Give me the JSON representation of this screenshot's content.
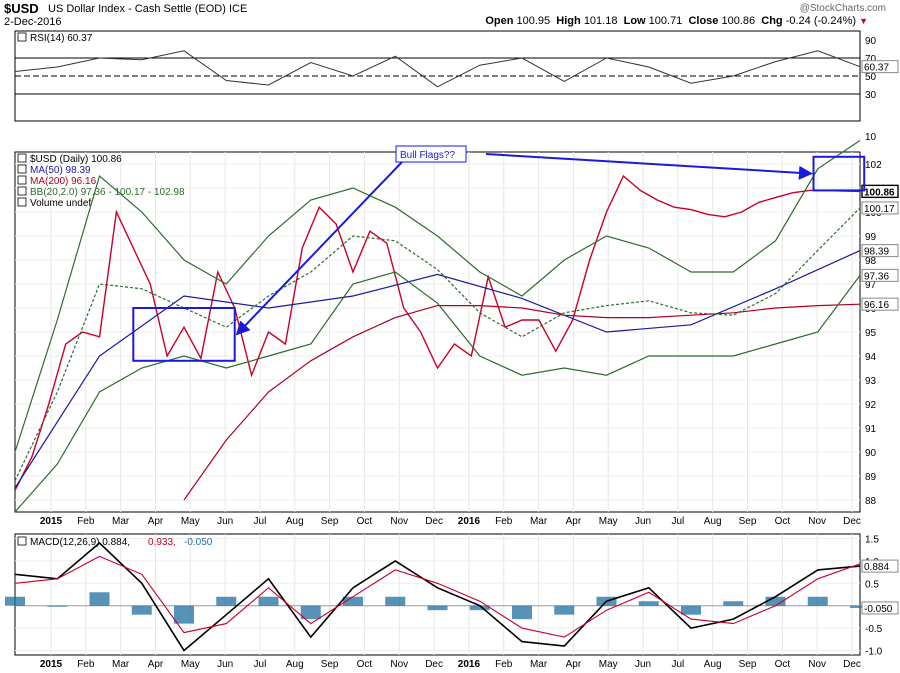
{
  "header": {
    "symbol": "$USD",
    "name": "US Dollar Index - Cash Settle (EOD) ICE",
    "date": "2-Dec-2016",
    "watermark": "@StockCharts.com",
    "ohlc": {
      "open_label": "Open",
      "open": "100.95",
      "high_label": "High",
      "high": "101.18",
      "low_label": "Low",
      "low": "100.71",
      "close_label": "Close",
      "close": "100.86",
      "chg_label": "Chg",
      "chg": "-0.24 (-0.24%)"
    }
  },
  "chart_data": [
    {
      "panel": "rsi",
      "type": "line",
      "legend": "RSI(14) 60.37",
      "ylim": [
        0,
        100
      ],
      "yticks": [
        10,
        30,
        50,
        70,
        90
      ],
      "reference_lines": [
        30,
        50,
        70
      ],
      "last_value": "60.37",
      "x": [
        0,
        5,
        10,
        15,
        20,
        25,
        30,
        35,
        40,
        45,
        50,
        55,
        60,
        65,
        70,
        75,
        80,
        85,
        90,
        95,
        100
      ],
      "values": [
        55,
        60,
        70,
        68,
        78,
        45,
        40,
        65,
        50,
        72,
        38,
        62,
        70,
        44,
        70,
        60,
        42,
        50,
        66,
        78,
        60.37
      ]
    },
    {
      "panel": "price",
      "type": "line",
      "legend": [
        {
          "text": "$USD (Daily) 100.86",
          "color": "#000000"
        },
        {
          "text": "MA(50) 98.39",
          "color": "#1a1aa0"
        },
        {
          "text": "MA(200) 96.16",
          "color": "#b00020"
        },
        {
          "text": "BB(20,2.0) 97.36 - 100.17 - 102.98",
          "color": "#2e6b2e"
        },
        {
          "text": "Volume undef",
          "color": "#000000"
        }
      ],
      "ylim": [
        87.5,
        102.5
      ],
      "yticks": [
        88,
        89,
        90,
        91,
        92,
        93,
        94,
        95,
        96,
        97,
        98,
        99,
        100,
        101,
        102
      ],
      "x_labels": [
        "2015",
        "Feb",
        "Mar",
        "Apr",
        "May",
        "Jun",
        "Jul",
        "Aug",
        "Sep",
        "Oct",
        "Nov",
        "Dec",
        "2016",
        "Feb",
        "Mar",
        "Apr",
        "May",
        "Jun",
        "Jul",
        "Aug",
        "Sep",
        "Oct",
        "Nov",
        "Dec"
      ],
      "price_tags": [
        {
          "text": "100.86",
          "value": 100.86,
          "dark": true
        },
        {
          "text": "100.17",
          "value": 100.17,
          "dark": false
        },
        {
          "text": "98.39",
          "value": 98.39,
          "dark": false
        },
        {
          "text": "97.36",
          "value": 97.36,
          "dark": false
        },
        {
          "text": "96.16",
          "value": 96.16,
          "dark": false
        }
      ],
      "series": [
        {
          "name": "$USD (Daily)",
          "color": "#c8002a",
          "x": [
            0,
            2,
            4,
            6,
            8,
            10,
            12,
            14,
            16,
            18,
            20,
            22,
            24,
            26,
            28,
            30,
            32,
            34,
            36,
            38,
            40,
            42,
            44,
            46,
            48,
            50,
            52,
            54,
            56,
            58,
            60,
            62,
            64,
            66,
            68,
            70,
            72,
            74,
            76,
            78,
            80,
            82,
            84,
            86,
            88,
            90,
            92,
            94,
            96,
            98,
            100
          ],
          "values": [
            88.4,
            89.8,
            92,
            94.5,
            95,
            94.8,
            100,
            98.5,
            97,
            94,
            95.2,
            93.9,
            97.5,
            96,
            93.2,
            95,
            94.5,
            98.5,
            100.2,
            99.5,
            97.5,
            99.2,
            98.7,
            96,
            95,
            93.5,
            94.5,
            94,
            97.3,
            95.2,
            95.5,
            95.5,
            94.2,
            95.5,
            98,
            100,
            101.5,
            100.9,
            100.5,
            100.2,
            100.1,
            99.9,
            99.8,
            100.0,
            100.4,
            100.6,
            100.8,
            100.9,
            100.9,
            100.87,
            100.86
          ]
        },
        {
          "name": "MA(50)",
          "color": "#1a1aa0",
          "x": [
            0,
            10,
            20,
            30,
            40,
            50,
            60,
            70,
            80,
            90,
            100
          ],
          "values": [
            88.5,
            94,
            96.5,
            96,
            96.5,
            97.4,
            96.4,
            95,
            95.3,
            96.8,
            98.39
          ]
        },
        {
          "name": "MA(200)",
          "color": "#b00020",
          "x": [
            20,
            25,
            30,
            35,
            40,
            45,
            50,
            55,
            60,
            65,
            70,
            75,
            80,
            85,
            90,
            95,
            100
          ],
          "values": [
            88,
            90.5,
            92.5,
            93.8,
            94.8,
            95.6,
            96.1,
            96.1,
            96,
            95.7,
            95.6,
            95.6,
            95.7,
            95.8,
            96,
            96.1,
            96.16
          ]
        },
        {
          "name": "BB upper",
          "color": "#2e6b2e",
          "x": [
            0,
            5,
            10,
            15,
            20,
            25,
            30,
            35,
            40,
            45,
            50,
            55,
            60,
            65,
            70,
            75,
            80,
            85,
            90,
            95,
            100
          ],
          "values": [
            90,
            95.5,
            101.5,
            100,
            98,
            97,
            99,
            100.5,
            101,
            100.2,
            99,
            97.5,
            96.5,
            98,
            99,
            98.5,
            97.5,
            97.5,
            98.8,
            101.8,
            102.98
          ]
        },
        {
          "name": "BB lower",
          "color": "#2e6b2e",
          "x": [
            0,
            5,
            10,
            15,
            20,
            25,
            30,
            35,
            40,
            45,
            50,
            55,
            60,
            65,
            70,
            75,
            80,
            85,
            90,
            95,
            100
          ],
          "values": [
            87.5,
            89.5,
            92.5,
            93.5,
            94,
            93.5,
            94,
            94.5,
            97,
            97.5,
            96.2,
            94,
            93.2,
            93.5,
            93.2,
            94,
            94,
            94,
            94.5,
            95,
            97.36
          ]
        },
        {
          "name": "BB middle",
          "color": "#2e6b2e",
          "dashed": true,
          "x": [
            0,
            5,
            10,
            15,
            20,
            25,
            30,
            35,
            40,
            45,
            50,
            55,
            60,
            65,
            70,
            75,
            80,
            85,
            90,
            95,
            100
          ],
          "values": [
            88.8,
            92.5,
            97,
            96.8,
            96,
            95.2,
            96.5,
            97.5,
            99,
            98.8,
            97.6,
            95.8,
            94.8,
            95.8,
            96.1,
            96.3,
            95.8,
            95.7,
            96.6,
            98.4,
            100.17
          ]
        }
      ],
      "annotations": {
        "callout_label": "Bull Flags??",
        "boxes": [
          {
            "x0": 14,
            "x1": 26,
            "y0": 93.8,
            "y1": 96
          },
          {
            "x0": 94.5,
            "x1": 100.5,
            "y0": 100.9,
            "y1": 102.3
          }
        ]
      }
    },
    {
      "panel": "macd",
      "type": "line",
      "legend": [
        {
          "text": "MACD(12,26,9) 0.884,",
          "color": "#000000"
        },
        {
          "text": " 0.933,",
          "color": "#c8002a"
        },
        {
          "text": " -0.050",
          "color": "#1f6fa0"
        }
      ],
      "ylim": [
        -1.1,
        1.6
      ],
      "yticks": [
        -1.0,
        -0.5,
        0.0,
        0.5,
        1.0,
        1.5
      ],
      "ytick_labels": [
        "-1.0",
        "-0.5",
        "0.0",
        "0.5",
        "1.0",
        "1.5"
      ],
      "x_labels": [
        "2015",
        "Feb",
        "Mar",
        "Apr",
        "May",
        "Jun",
        "Jul",
        "Aug",
        "Sep",
        "Oct",
        "Nov",
        "Dec",
        "2016",
        "Feb",
        "Mar",
        "Apr",
        "May",
        "Jun",
        "Jul",
        "Aug",
        "Sep",
        "Oct",
        "Nov",
        "Dec"
      ],
      "price_tags": [
        {
          "text": "0.884",
          "value": 0.884,
          "dark": false
        },
        {
          "text": "-0.050",
          "value": -0.05,
          "dark": false
        }
      ],
      "series": [
        {
          "name": "MACD",
          "color": "#000000",
          "x": [
            0,
            5,
            10,
            15,
            20,
            25,
            30,
            35,
            40,
            45,
            50,
            55,
            60,
            65,
            70,
            75,
            80,
            85,
            90,
            95,
            100
          ],
          "values": [
            0.7,
            0.6,
            1.4,
            0.5,
            -1.0,
            -0.2,
            0.6,
            -0.7,
            0.4,
            1.0,
            0.4,
            0.0,
            -0.8,
            -0.9,
            0.1,
            0.4,
            -0.5,
            -0.3,
            0.2,
            0.8,
            0.884
          ]
        },
        {
          "name": "Signal",
          "color": "#c8002a",
          "x": [
            0,
            5,
            10,
            15,
            20,
            25,
            30,
            35,
            40,
            45,
            50,
            55,
            60,
            65,
            70,
            75,
            80,
            85,
            90,
            95,
            100
          ],
          "values": [
            0.5,
            0.6,
            1.1,
            0.7,
            -0.6,
            -0.4,
            0.4,
            -0.4,
            0.2,
            0.8,
            0.5,
            0.1,
            -0.5,
            -0.7,
            -0.1,
            0.3,
            -0.3,
            -0.4,
            0.0,
            0.6,
            0.933
          ]
        },
        {
          "name": "Histogram",
          "color": "#1f6fa0",
          "kind": "histogram",
          "x": [
            0,
            5,
            10,
            15,
            20,
            25,
            30,
            35,
            40,
            45,
            50,
            55,
            60,
            65,
            70,
            75,
            80,
            85,
            90,
            95,
            100
          ],
          "values": [
            0.2,
            0.0,
            0.3,
            -0.2,
            -0.4,
            0.2,
            0.2,
            -0.3,
            0.2,
            0.2,
            -0.1,
            -0.1,
            -0.3,
            -0.2,
            0.2,
            0.1,
            -0.2,
            0.1,
            0.2,
            0.2,
            -0.05
          ]
        }
      ]
    }
  ]
}
